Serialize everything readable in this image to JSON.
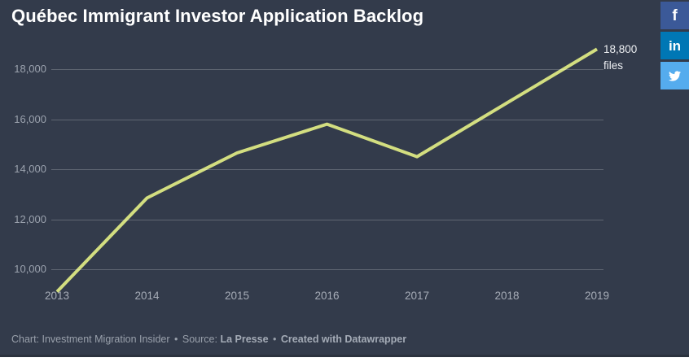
{
  "title": "Québec Immigrant Investor Application Backlog",
  "theme": {
    "background": "#333b4b",
    "title_color": "#ffffff",
    "gridline_color": "rgba(255,255,255,0.22)",
    "axis_label_color": "#a6acb7"
  },
  "share": {
    "facebook_glyph": "f",
    "linkedin_glyph": "in",
    "facebook_color": "#3b5998",
    "linkedin_color": "#0077b5",
    "twitter_color": "#55acee"
  },
  "footer": {
    "chart_credit": "Chart: Investment Migration Insider",
    "separator": "•",
    "source_prefix": "Source:",
    "source": "La Presse",
    "created": "Created with Datawrapper"
  },
  "chart_data": {
    "type": "line",
    "title": "Québec Immigrant Investor Application Backlog",
    "x": [
      2013,
      2014,
      2015,
      2016,
      2017,
      2018,
      2019
    ],
    "xtick_labels": [
      "2013",
      "2014",
      "2015",
      "2016",
      "2017",
      "2018",
      "2019"
    ],
    "values": [
      9100,
      12850,
      14650,
      15800,
      14500,
      16650,
      18800
    ],
    "unit": "files",
    "yticks": [
      10000,
      12000,
      14000,
      16000,
      18000
    ],
    "ytick_labels": [
      "10,000",
      "12,000",
      "14,000",
      "16,000",
      "18,000"
    ],
    "ylim": [
      9000,
      19200
    ],
    "xlabel": "",
    "ylabel": "",
    "grid": "horizontal",
    "legend": "none",
    "line_color": "#d3de80",
    "annotation": {
      "line1": "18,800",
      "line2": "files",
      "target_year": 2019
    }
  }
}
